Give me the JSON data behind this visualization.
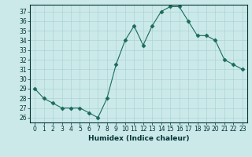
{
  "x": [
    0,
    1,
    2,
    3,
    4,
    5,
    6,
    7,
    8,
    9,
    10,
    11,
    12,
    13,
    14,
    15,
    16,
    17,
    18,
    19,
    20,
    21,
    22,
    23
  ],
  "y": [
    29,
    28,
    27.5,
    27,
    27,
    27,
    26.5,
    26,
    28,
    31.5,
    34,
    35.5,
    33.5,
    35.5,
    37,
    37.5,
    37.5,
    36,
    34.5,
    34.5,
    34,
    32,
    31.5,
    31
  ],
  "line_color": "#1a6b5a",
  "marker": "D",
  "marker_size": 2.5,
  "bg_color": "#cce9ea",
  "grid_color": "#aad4d5",
  "xlabel": "Humidex (Indice chaleur)",
  "ylim": [
    25.5,
    37.7
  ],
  "xlim": [
    -0.5,
    23.5
  ],
  "yticks": [
    26,
    27,
    28,
    29,
    30,
    31,
    32,
    33,
    34,
    35,
    36,
    37
  ],
  "xticks": [
    0,
    1,
    2,
    3,
    4,
    5,
    6,
    7,
    8,
    9,
    10,
    11,
    12,
    13,
    14,
    15,
    16,
    17,
    18,
    19,
    20,
    21,
    22,
    23
  ],
  "tick_fontsize": 5.5,
  "xlabel_fontsize": 6.5,
  "label_color": "#003333"
}
